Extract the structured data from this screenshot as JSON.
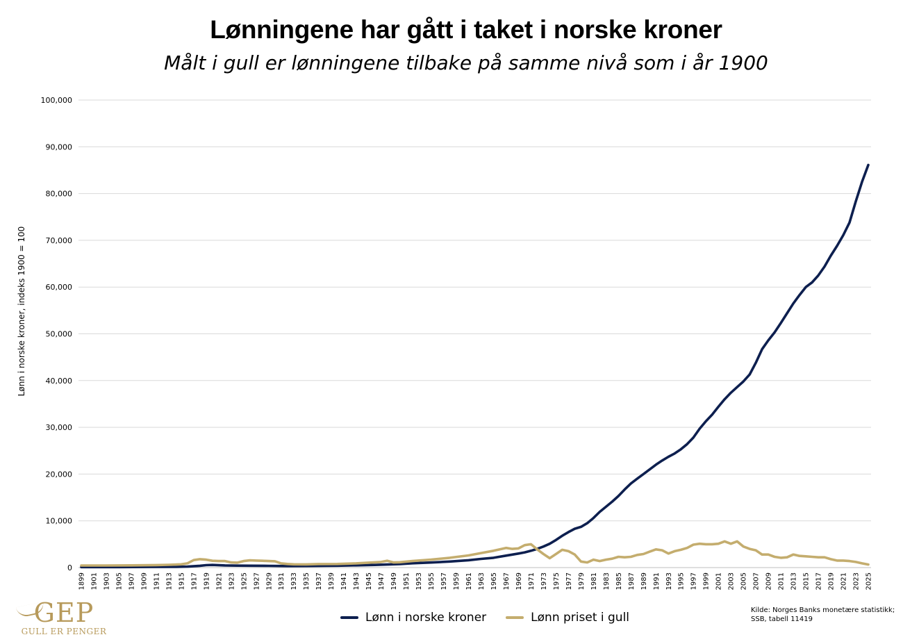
{
  "title": "Lønningene har gått i taket i norske kroner",
  "subtitle": "Målt i gull er lønningene tilbake på samme nivå som i år 1900",
  "source": [
    "Kilde: Norges Banks monetære statistikk;",
    "SSB, tabell 11419"
  ],
  "logo": {
    "mark": "GEP",
    "text": "GULL ER PENGER"
  },
  "colors": {
    "navy": "#0d1f4f",
    "gold": "#c4ad6e",
    "grid": "#d9d9d9",
    "logo": "#b79a5b"
  },
  "chart_data": {
    "type": "line",
    "title": "Lønningene har gått i taket i norske kroner",
    "ylabel": "Lønn i norske kroner, indeks 1900 = 100",
    "xlabel": "",
    "ylim": [
      0,
      100000
    ],
    "yticks": [
      "0",
      "10,000",
      "20,000",
      "30,000",
      "40,000",
      "50,000",
      "60,000",
      "70,000",
      "80,000",
      "90,000",
      "100,000"
    ],
    "xlim": [
      1899,
      2025
    ],
    "xtick_step": 2,
    "grid": "horizontal",
    "legend_position": "bottom",
    "series": [
      {
        "name": "Lønn i norske kroner",
        "color": "#0d1f4f",
        "points": [
          [
            1899,
            100
          ],
          [
            1905,
            110
          ],
          [
            1910,
            130
          ],
          [
            1914,
            150
          ],
          [
            1916,
            210
          ],
          [
            1918,
            380
          ],
          [
            1919,
            520
          ],
          [
            1920,
            560
          ],
          [
            1922,
            460
          ],
          [
            1924,
            420
          ],
          [
            1926,
            400
          ],
          [
            1929,
            370
          ],
          [
            1932,
            330
          ],
          [
            1935,
            340
          ],
          [
            1938,
            370
          ],
          [
            1940,
            400
          ],
          [
            1943,
            480
          ],
          [
            1946,
            560
          ],
          [
            1948,
            650
          ],
          [
            1950,
            740
          ],
          [
            1952,
            920
          ],
          [
            1955,
            1080
          ],
          [
            1958,
            1300
          ],
          [
            1961,
            1580
          ],
          [
            1963,
            1850
          ],
          [
            1965,
            2100
          ],
          [
            1967,
            2550
          ],
          [
            1969,
            3000
          ],
          [
            1970,
            3250
          ],
          [
            1971,
            3600
          ],
          [
            1972,
            4000
          ],
          [
            1973,
            4500
          ],
          [
            1974,
            5100
          ],
          [
            1975,
            5900
          ],
          [
            1976,
            6800
          ],
          [
            1977,
            7600
          ],
          [
            1978,
            8300
          ],
          [
            1979,
            8700
          ],
          [
            1980,
            9500
          ],
          [
            1981,
            10600
          ],
          [
            1982,
            11900
          ],
          [
            1983,
            13000
          ],
          [
            1984,
            14100
          ],
          [
            1985,
            15300
          ],
          [
            1986,
            16700
          ],
          [
            1987,
            18000
          ],
          [
            1988,
            19000
          ],
          [
            1989,
            20000
          ],
          [
            1990,
            21000
          ],
          [
            1991,
            22000
          ],
          [
            1992,
            22900
          ],
          [
            1993,
            23700
          ],
          [
            1994,
            24400
          ],
          [
            1995,
            25300
          ],
          [
            1996,
            26400
          ],
          [
            1997,
            27800
          ],
          [
            1998,
            29700
          ],
          [
            1999,
            31300
          ],
          [
            2000,
            32700
          ],
          [
            2001,
            34400
          ],
          [
            2002,
            36000
          ],
          [
            2003,
            37400
          ],
          [
            2004,
            38600
          ],
          [
            2005,
            39800
          ],
          [
            2006,
            41300
          ],
          [
            2007,
            43800
          ],
          [
            2008,
            46700
          ],
          [
            2009,
            48600
          ],
          [
            2010,
            50300
          ],
          [
            2011,
            52300
          ],
          [
            2012,
            54400
          ],
          [
            2013,
            56500
          ],
          [
            2014,
            58300
          ],
          [
            2015,
            60000
          ],
          [
            2016,
            61000
          ],
          [
            2017,
            62500
          ],
          [
            2018,
            64400
          ],
          [
            2019,
            66700
          ],
          [
            2020,
            68800
          ],
          [
            2021,
            71100
          ],
          [
            2022,
            73800
          ],
          [
            2023,
            78300
          ],
          [
            2024,
            82500
          ],
          [
            2025,
            86100
          ]
        ]
      },
      {
        "name": "Lønn priset i gull",
        "color": "#c4ad6e",
        "points": [
          [
            1899,
            450
          ],
          [
            1903,
            440
          ],
          [
            1907,
            470
          ],
          [
            1911,
            540
          ],
          [
            1913,
            600
          ],
          [
            1915,
            700
          ],
          [
            1916,
            900
          ],
          [
            1917,
            1600
          ],
          [
            1918,
            1800
          ],
          [
            1919,
            1700
          ],
          [
            1920,
            1450
          ],
          [
            1921,
            1400
          ],
          [
            1922,
            1400
          ],
          [
            1923,
            1100
          ],
          [
            1924,
            1050
          ],
          [
            1925,
            1400
          ],
          [
            1926,
            1550
          ],
          [
            1927,
            1500
          ],
          [
            1928,
            1450
          ],
          [
            1929,
            1400
          ],
          [
            1930,
            1350
          ],
          [
            1931,
            900
          ],
          [
            1932,
            780
          ],
          [
            1933,
            700
          ],
          [
            1935,
            680
          ],
          [
            1937,
            760
          ],
          [
            1940,
            780
          ],
          [
            1943,
            900
          ],
          [
            1945,
            1050
          ],
          [
            1947,
            1200
          ],
          [
            1948,
            1450
          ],
          [
            1949,
            1100
          ],
          [
            1950,
            1150
          ],
          [
            1952,
            1400
          ],
          [
            1955,
            1700
          ],
          [
            1958,
            2100
          ],
          [
            1961,
            2600
          ],
          [
            1963,
            3100
          ],
          [
            1965,
            3600
          ],
          [
            1967,
            4200
          ],
          [
            1968,
            4000
          ],
          [
            1969,
            4100
          ],
          [
            1970,
            4800
          ],
          [
            1971,
            5000
          ],
          [
            1972,
            3900
          ],
          [
            1973,
            2900
          ],
          [
            1974,
            2000
          ],
          [
            1975,
            2900
          ],
          [
            1976,
            3800
          ],
          [
            1977,
            3500
          ],
          [
            1978,
            2800
          ],
          [
            1979,
            1300
          ],
          [
            1980,
            1100
          ],
          [
            1981,
            1700
          ],
          [
            1982,
            1400
          ],
          [
            1983,
            1700
          ],
          [
            1984,
            1900
          ],
          [
            1985,
            2300
          ],
          [
            1986,
            2200
          ],
          [
            1987,
            2300
          ],
          [
            1988,
            2700
          ],
          [
            1989,
            2900
          ],
          [
            1990,
            3400
          ],
          [
            1991,
            3900
          ],
          [
            1992,
            3700
          ],
          [
            1993,
            3000
          ],
          [
            1994,
            3500
          ],
          [
            1995,
            3800
          ],
          [
            1996,
            4200
          ],
          [
            1997,
            4900
          ],
          [
            1998,
            5100
          ],
          [
            1999,
            5000
          ],
          [
            2000,
            5000
          ],
          [
            2001,
            5100
          ],
          [
            2002,
            5600
          ],
          [
            2003,
            5100
          ],
          [
            2004,
            5600
          ],
          [
            2005,
            4500
          ],
          [
            2006,
            4000
          ],
          [
            2007,
            3700
          ],
          [
            2008,
            2800
          ],
          [
            2009,
            2800
          ],
          [
            2010,
            2300
          ],
          [
            2011,
            2100
          ],
          [
            2012,
            2200
          ],
          [
            2013,
            2800
          ],
          [
            2014,
            2500
          ],
          [
            2015,
            2400
          ],
          [
            2016,
            2300
          ],
          [
            2017,
            2200
          ],
          [
            2018,
            2200
          ],
          [
            2019,
            1800
          ],
          [
            2020,
            1500
          ],
          [
            2021,
            1500
          ],
          [
            2022,
            1400
          ],
          [
            2023,
            1200
          ],
          [
            2024,
            900
          ],
          [
            2025,
            650
          ]
        ]
      }
    ]
  }
}
